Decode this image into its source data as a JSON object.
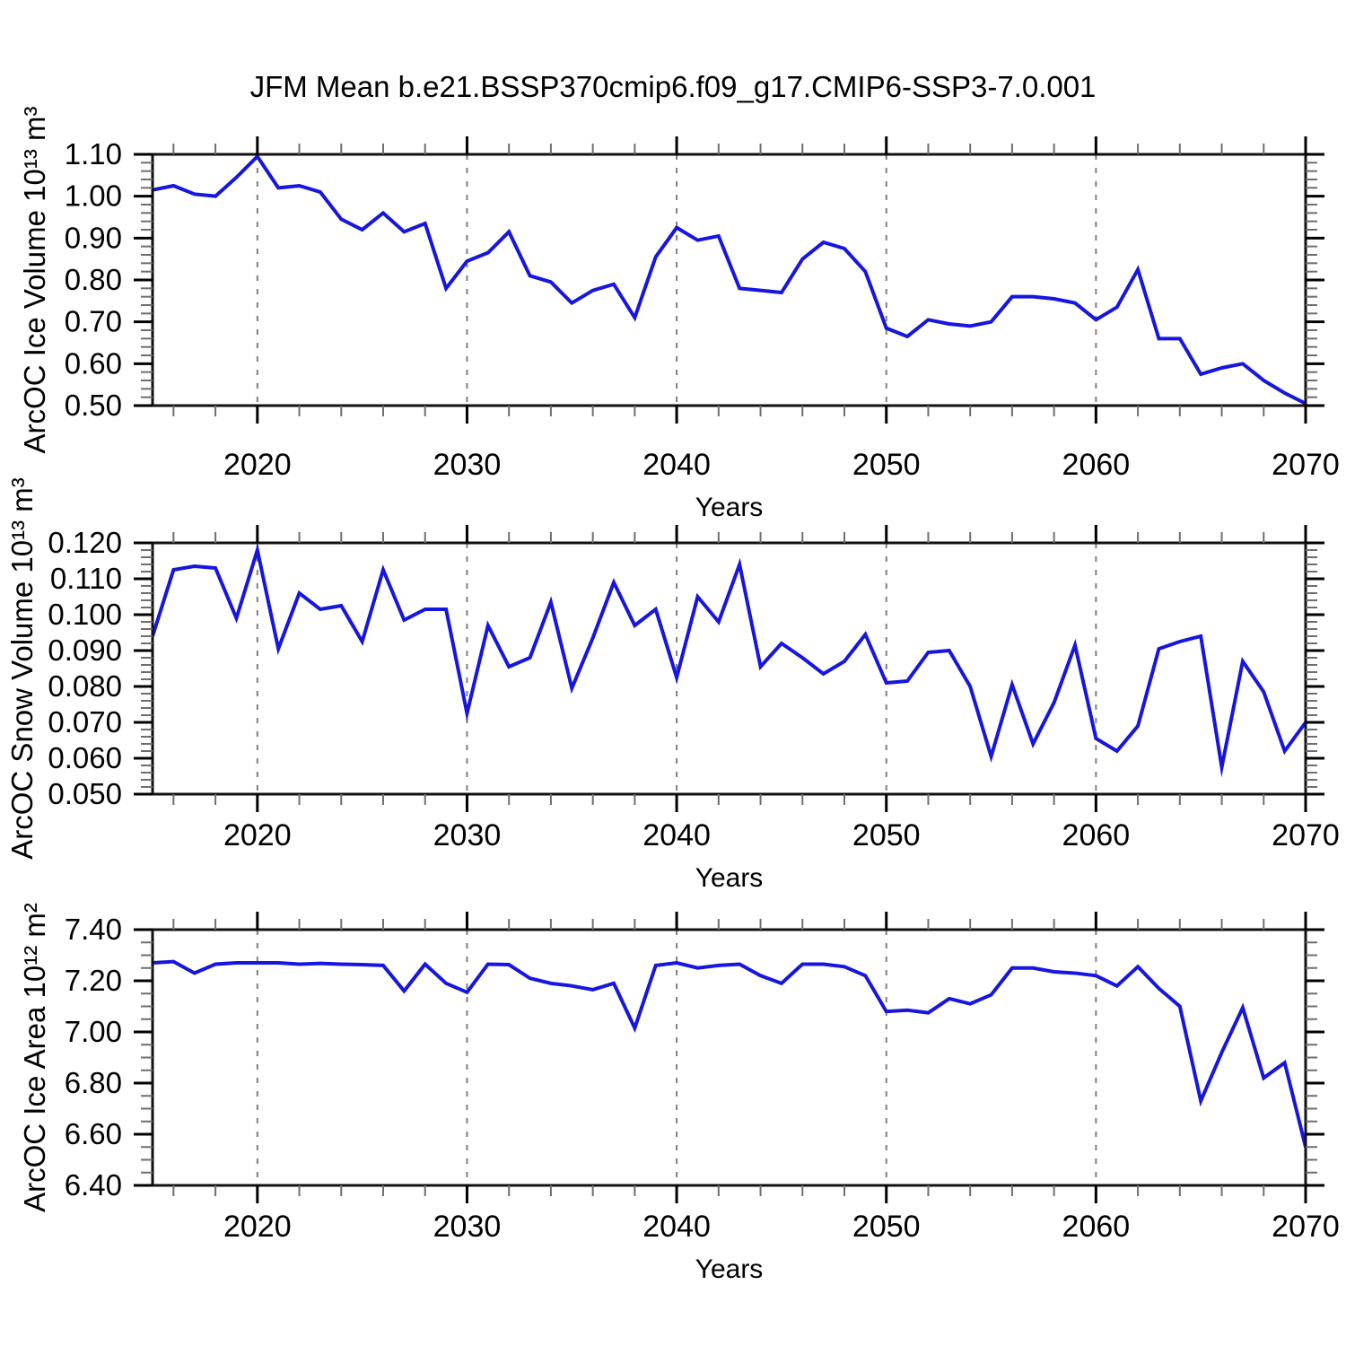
{
  "title": "JFM Mean b.e21.BSSP370cmip6.f09_g17.CMIP6-SSP3-7.0.001",
  "line_color": "#1616e0",
  "axis_color": "#111111",
  "minor_tick_color": "#6e6e6e",
  "gridline_color": "#7f7f7f",
  "x_axis": {
    "label": "Years",
    "range": [
      2015,
      2070
    ],
    "major_ticks": [
      2020,
      2030,
      2040,
      2050,
      2060,
      2070
    ],
    "minor_tick_step": 2,
    "gridline_years": [
      2020,
      2030,
      2040,
      2050,
      2060
    ]
  },
  "years": [
    2015,
    2016,
    2017,
    2018,
    2019,
    2020,
    2021,
    2022,
    2023,
    2024,
    2025,
    2026,
    2027,
    2028,
    2029,
    2030,
    2031,
    2032,
    2033,
    2034,
    2035,
    2036,
    2037,
    2038,
    2039,
    2040,
    2041,
    2042,
    2043,
    2044,
    2045,
    2046,
    2047,
    2048,
    2049,
    2050,
    2051,
    2052,
    2053,
    2054,
    2055,
    2056,
    2057,
    2058,
    2059,
    2060,
    2061,
    2062,
    2063,
    2064,
    2065,
    2066,
    2067,
    2068,
    2069,
    2070
  ],
  "chart_data": [
    {
      "type": "line",
      "title": "JFM Mean b.e21.BSSP370cmip6.f09_g17.CMIP6-SSP3-7.0.001",
      "xlabel": "Years",
      "ylabel": "ArcOC Ice Volume 10¹³ m³",
      "ylim": [
        0.5,
        1.1
      ],
      "ytick_step": 0.1,
      "yminor_step": 0.02,
      "ytick_decimals": 2,
      "grid": "dashed-vertical-at-decades",
      "legend": "none",
      "values": [
        1.015,
        1.025,
        1.005,
        1.0,
        1.045,
        1.095,
        1.02,
        1.025,
        1.01,
        0.945,
        0.92,
        0.96,
        0.915,
        0.935,
        0.78,
        0.845,
        0.865,
        0.915,
        0.81,
        0.795,
        0.745,
        0.775,
        0.79,
        0.71,
        0.855,
        0.925,
        0.895,
        0.905,
        0.78,
        0.775,
        0.77,
        0.85,
        0.89,
        0.875,
        0.82,
        0.685,
        0.665,
        0.705,
        0.695,
        0.69,
        0.7,
        0.76,
        0.76,
        0.755,
        0.745,
        0.705,
        0.735,
        0.825,
        0.66,
        0.66,
        0.575,
        0.59,
        0.6,
        0.56,
        0.53,
        0.505
      ]
    },
    {
      "type": "line",
      "title": "",
      "xlabel": "Years",
      "ylabel": "ArcOC Snow Volume 10¹³ m³",
      "ylim": [
        0.05,
        0.12
      ],
      "ytick_step": 0.01,
      "yminor_step": 0.002,
      "ytick_decimals": 3,
      "grid": "dashed-vertical-at-decades",
      "legend": "none",
      "values": [
        0.094,
        0.1125,
        0.1135,
        0.113,
        0.099,
        0.118,
        0.0905,
        0.106,
        0.1015,
        0.1025,
        0.0925,
        0.1125,
        0.0985,
        0.1015,
        0.1015,
        0.0725,
        0.097,
        0.0855,
        0.088,
        0.1035,
        0.0795,
        0.0935,
        0.109,
        0.097,
        0.1015,
        0.0825,
        0.105,
        0.098,
        0.114,
        0.0855,
        0.092,
        0.088,
        0.0835,
        0.087,
        0.0945,
        0.081,
        0.0815,
        0.0895,
        0.09,
        0.08,
        0.0605,
        0.0805,
        0.064,
        0.0755,
        0.0915,
        0.0655,
        0.062,
        0.069,
        0.0905,
        0.0925,
        0.094,
        0.0575,
        0.087,
        0.0785,
        0.062,
        0.07
      ]
    },
    {
      "type": "line",
      "title": "",
      "xlabel": "Years",
      "ylabel": "ArcOC Ice Area 10¹² m²",
      "ylim": [
        6.4,
        7.4
      ],
      "ytick_step": 0.2,
      "yminor_step": 0.05,
      "ytick_decimals": 2,
      "grid": "dashed-vertical-at-decades",
      "legend": "none",
      "values": [
        7.27,
        7.275,
        7.23,
        7.265,
        7.27,
        7.27,
        7.27,
        7.265,
        7.268,
        7.265,
        7.263,
        7.26,
        7.16,
        7.265,
        7.19,
        7.155,
        7.265,
        7.263,
        7.21,
        7.19,
        7.18,
        7.165,
        7.19,
        7.015,
        7.26,
        7.27,
        7.25,
        7.26,
        7.265,
        7.22,
        7.19,
        7.265,
        7.265,
        7.255,
        7.22,
        7.08,
        7.085,
        7.075,
        7.13,
        7.11,
        7.145,
        7.25,
        7.25,
        7.235,
        7.23,
        7.22,
        7.18,
        7.255,
        7.17,
        7.1,
        6.73,
        6.92,
        7.095,
        6.82,
        6.88,
        6.55
      ]
    }
  ]
}
